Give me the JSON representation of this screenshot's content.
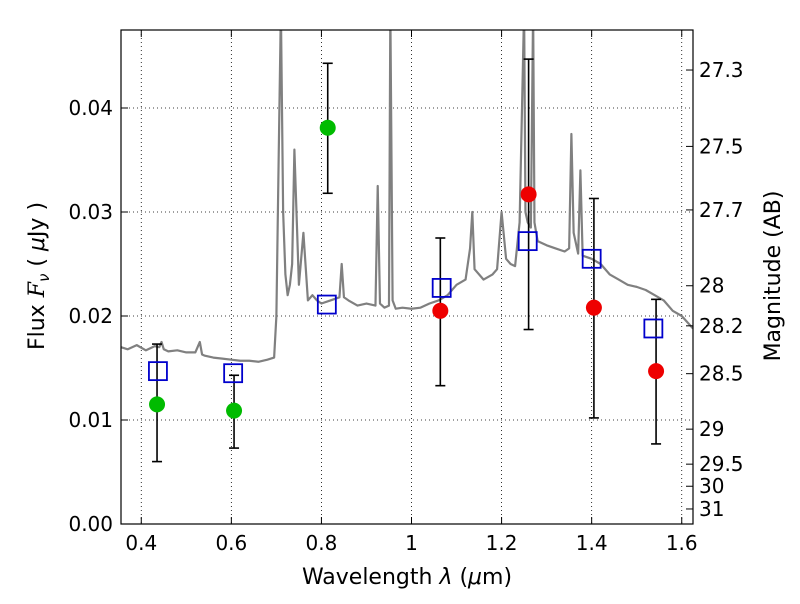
{
  "chart_data": {
    "type": "scatter",
    "xlabel": "Wavelength  λ (μm)",
    "xlabel_parts": {
      "prefix": "Wavelength  ",
      "symbol": "λ",
      "suffix": " (",
      "mu": "μ",
      "unit": "m)"
    },
    "ylabel_parts": {
      "prefix": "Flux  ",
      "symbol": "F",
      "subscript": "ν",
      "mid": "  ( ",
      "mu": "μ",
      "unit": "Jy )"
    },
    "y2label": "Magnitude (AB)",
    "xlim": [
      0.355,
      1.625
    ],
    "ylim": [
      0.0,
      0.0475
    ],
    "grid": true,
    "x_ticks": [
      {
        "value": 0.4,
        "label": "0.4"
      },
      {
        "value": 0.6,
        "label": "0.6"
      },
      {
        "value": 0.8,
        "label": "0.8"
      },
      {
        "value": 1.0,
        "label": "1"
      },
      {
        "value": 1.2,
        "label": "1.2"
      },
      {
        "value": 1.4,
        "label": "1.4"
      },
      {
        "value": 1.6,
        "label": "1.6"
      }
    ],
    "y_ticks": [
      {
        "value": 0.0,
        "label": "0.00"
      },
      {
        "value": 0.01,
        "label": "0.01"
      },
      {
        "value": 0.02,
        "label": "0.02"
      },
      {
        "value": 0.03,
        "label": "0.03"
      },
      {
        "value": 0.04,
        "label": "0.04"
      }
    ],
    "y2_ticks": [
      {
        "value": 27.3,
        "label": "27.3"
      },
      {
        "value": 27.5,
        "label": "27.5"
      },
      {
        "value": 27.7,
        "label": "27.7"
      },
      {
        "value": 28.0,
        "label": "28"
      },
      {
        "value": 28.2,
        "label": "28.2"
      },
      {
        "value": 28.5,
        "label": "28.5"
      },
      {
        "value": 29.0,
        "label": "29"
      },
      {
        "value": 29.5,
        "label": "29.5"
      },
      {
        "value": 30.0,
        "label": "30"
      },
      {
        "value": 31.0,
        "label": "31"
      }
    ],
    "colors": {
      "spectrum": "#808080",
      "green": "#00bb00",
      "red": "#ee0000",
      "model": "#0000cc",
      "errorbar": "#000000"
    },
    "series": [
      {
        "marker": "circle-green",
        "points": [
          {
            "x": 0.435,
            "y": 0.0115,
            "err": [
              0.006,
              0.0173
            ]
          },
          {
            "x": 0.606,
            "y": 0.0109,
            "err": [
              0.0073,
              0.0143
            ]
          },
          {
            "x": 0.814,
            "y": 0.0381,
            "err": [
              0.0318,
              0.0443
            ]
          }
        ]
      },
      {
        "marker": "circle-red",
        "points": [
          {
            "x": 1.064,
            "y": 0.0205,
            "err": [
              0.0133,
              0.0275
            ]
          },
          {
            "x": 1.26,
            "y": 0.0317,
            "err": [
              0.0187,
              0.0447
            ]
          },
          {
            "x": 1.405,
            "y": 0.0208,
            "err": [
              0.0102,
              0.0313
            ]
          },
          {
            "x": 1.543,
            "y": 0.0147,
            "err": [
              0.0077,
              0.0216
            ]
          }
        ]
      },
      {
        "marker": "square-blue",
        "points": [
          {
            "x": 0.437,
            "y": 0.0147
          },
          {
            "x": 0.604,
            "y": 0.0145
          },
          {
            "x": 0.812,
            "y": 0.0211
          },
          {
            "x": 1.067,
            "y": 0.0227
          },
          {
            "x": 1.258,
            "y": 0.0272
          },
          {
            "x": 1.4,
            "y": 0.0255
          },
          {
            "x": 1.537,
            "y": 0.0188
          }
        ]
      },
      {
        "marker": "line-gray",
        "x": [
          0.355,
          0.37,
          0.39,
          0.41,
          0.43,
          0.44,
          0.445,
          0.45,
          0.46,
          0.48,
          0.5,
          0.52,
          0.53,
          0.535,
          0.54,
          0.56,
          0.58,
          0.6,
          0.62,
          0.64,
          0.66,
          0.68,
          0.695,
          0.7,
          0.705,
          0.71,
          0.715,
          0.72,
          0.725,
          0.73,
          0.735,
          0.74,
          0.75,
          0.76,
          0.77,
          0.78,
          0.79,
          0.8,
          0.82,
          0.84,
          0.845,
          0.85,
          0.86,
          0.88,
          0.9,
          0.92,
          0.925,
          0.93,
          0.94,
          0.95,
          0.953,
          0.958,
          0.965,
          0.98,
          1.0,
          1.02,
          1.04,
          1.06,
          1.08,
          1.1,
          1.12,
          1.13,
          1.135,
          1.14,
          1.16,
          1.18,
          1.19,
          1.2,
          1.21,
          1.22,
          1.23,
          1.24,
          1.25,
          1.253,
          1.258,
          1.265,
          1.27,
          1.273,
          1.28,
          1.3,
          1.32,
          1.34,
          1.35,
          1.355,
          1.36,
          1.37,
          1.375,
          1.38,
          1.4,
          1.42,
          1.44,
          1.46,
          1.48,
          1.5,
          1.52,
          1.54,
          1.56,
          1.58,
          1.6,
          1.625
        ],
        "y": [
          0.017,
          0.0168,
          0.0172,
          0.0167,
          0.0171,
          0.017,
          0.0175,
          0.0168,
          0.0166,
          0.0167,
          0.0165,
          0.0165,
          0.0175,
          0.0163,
          0.0162,
          0.016,
          0.0159,
          0.0158,
          0.0157,
          0.0157,
          0.0156,
          0.0158,
          0.016,
          0.02,
          0.035,
          0.0495,
          0.03,
          0.024,
          0.022,
          0.023,
          0.025,
          0.036,
          0.023,
          0.028,
          0.0215,
          0.022,
          0.0215,
          0.0212,
          0.0215,
          0.0218,
          0.025,
          0.0218,
          0.0215,
          0.021,
          0.0212,
          0.021,
          0.0325,
          0.0212,
          0.0208,
          0.021,
          0.0495,
          0.0215,
          0.0207,
          0.0208,
          0.0207,
          0.0208,
          0.0212,
          0.0215,
          0.022,
          0.023,
          0.0235,
          0.0265,
          0.03,
          0.0245,
          0.0235,
          0.024,
          0.0245,
          0.03,
          0.0255,
          0.025,
          0.0248,
          0.029,
          0.0495,
          0.03,
          0.029,
          0.0285,
          0.0495,
          0.029,
          0.0272,
          0.0268,
          0.0265,
          0.0262,
          0.0265,
          0.0375,
          0.028,
          0.026,
          0.034,
          0.0258,
          0.0255,
          0.025,
          0.024,
          0.0235,
          0.023,
          0.0228,
          0.0225,
          0.022,
          0.0215,
          0.0205,
          0.02,
          0.0188
        ]
      }
    ]
  }
}
